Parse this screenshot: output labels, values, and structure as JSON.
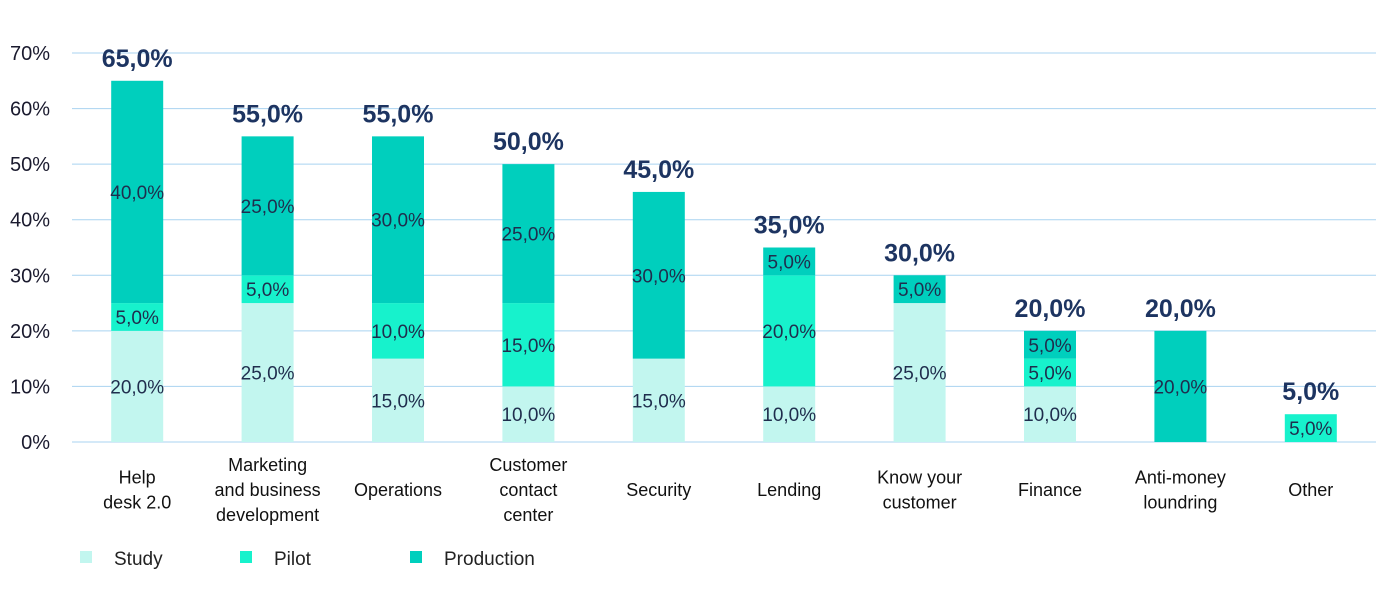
{
  "chart_data": {
    "type": "bar",
    "stacked": true,
    "categories": [
      [
        "Help",
        "desk 2.0"
      ],
      [
        "Marketing",
        "and business",
        "development"
      ],
      [
        "Operations"
      ],
      [
        "Customer",
        "contact",
        "center"
      ],
      [
        "Security"
      ],
      [
        "Lending"
      ],
      [
        "Know your",
        "customer"
      ],
      [
        "Finance"
      ],
      [
        "Anti-money",
        "loundring"
      ],
      [
        "Other"
      ]
    ],
    "series": [
      {
        "name": "Study",
        "color": "#c2f6ef",
        "values": [
          20,
          25,
          15,
          10,
          15,
          10,
          25,
          10,
          0,
          0
        ],
        "labels": [
          "20,0%",
          "25,0%",
          "15,0%",
          "10,0%",
          "15,0%",
          "10,0%",
          "25,0%",
          "10,0%",
          "",
          ""
        ]
      },
      {
        "name": "Pilot",
        "color": "#17f2cc",
        "values": [
          5,
          5,
          10,
          15,
          0,
          20,
          0,
          5,
          0,
          5
        ],
        "labels": [
          "5,0%",
          "5,0%",
          "10,0%",
          "15,0%",
          "",
          "20,0%",
          "",
          "5,0%",
          "",
          "5,0%"
        ]
      },
      {
        "name": "Production",
        "color": "#00cfbd",
        "values": [
          40,
          25,
          30,
          25,
          30,
          5,
          5,
          5,
          20,
          0
        ],
        "labels": [
          "40,0%",
          "25,0%",
          "30,0%",
          "25,0%",
          "30,0%",
          "5,0%",
          "5,0%",
          "5,0%",
          "20,0%",
          ""
        ]
      }
    ],
    "totals": [
      65,
      55,
      55,
      50,
      45,
      35,
      30,
      20,
      20,
      5
    ],
    "total_labels": [
      "65,0%",
      "55,0%",
      "55,0%",
      "50,0%",
      "45,0%",
      "35,0%",
      "30,0%",
      "20,0%",
      "20,0%",
      "5,0%"
    ],
    "y_ticks": [
      0,
      10,
      20,
      30,
      40,
      50,
      60,
      70
    ],
    "y_tick_labels": [
      "0%",
      "10%",
      "20%",
      "30%",
      "40%",
      "50%",
      "60%",
      "70%"
    ],
    "ylim": [
      0,
      70
    ],
    "grid": true,
    "legend_position": "bottom-left",
    "colors": {
      "grid": "#a9d3f0",
      "total_text": "#1d3461",
      "segment_text": "#1f2d4d"
    }
  }
}
